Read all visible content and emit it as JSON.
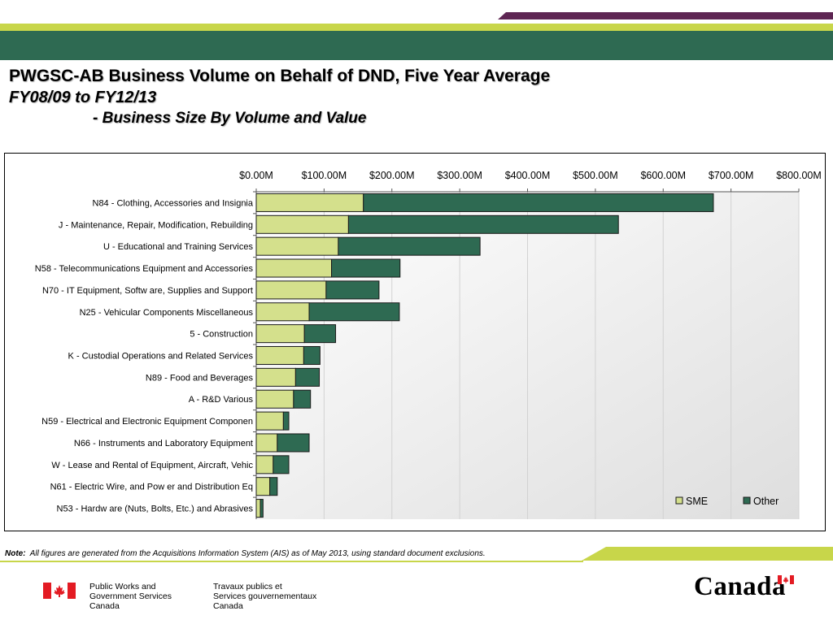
{
  "title": {
    "line1": "PWGSC-AB Business Volume on Behalf of DND, Five Year Average",
    "line2": "FY08/09 to FY12/13",
    "line3": "- Business Size By Volume and Value"
  },
  "chart_data": {
    "type": "bar",
    "orientation": "horizontal",
    "stacked": true,
    "title": "",
    "xlabel": "",
    "ylabel": "",
    "xlim": [
      0,
      800
    ],
    "x_unit": "M",
    "x_ticks": [
      "$0.00M",
      "$100.00M",
      "$200.00M",
      "$300.00M",
      "$400.00M",
      "$500.00M",
      "$600.00M",
      "$700.00M",
      "$800.00M"
    ],
    "x_axis_position": "top",
    "grid": true,
    "legend_position": "bottom-right",
    "categories": [
      "N84 - Clothing, Accessories and Insignia",
      "J - Maintenance, Repair, Modification, Rebuilding",
      "U - Educational and Training Services",
      "N58 - Telecommunications Equipment and Accessories",
      "N70 - IT Equipment, Softw are, Supplies and Support",
      "N25 - Vehicular Components Miscellaneous",
      "5 - Construction",
      "K - Custodial Operations and Related Services",
      "N89 - Food and Beverages",
      "A - R&D Various",
      "N59 - Electrical and Electronic Equipment Componen",
      "N66 - Instruments and Laboratory Equipment",
      "W - Lease and Rental of Equipment, Aircraft, Vehic",
      "N61 - Electric Wire, and Pow er and Distribution Eq",
      "N53 - Hardw are (Nuts, Bolts, Etc.) and Abrasives"
    ],
    "series": [
      {
        "name": "SME",
        "color": "#d4e08c",
        "values": [
          158,
          136,
          121,
          111,
          103,
          78,
          71,
          70,
          58,
          55,
          40,
          31,
          25,
          20,
          6
        ]
      },
      {
        "name": "Other",
        "color": "#2e6a52",
        "values": [
          516,
          398,
          209,
          101,
          78,
          133,
          46,
          24,
          35,
          25,
          8,
          47,
          23,
          11,
          4
        ]
      }
    ]
  },
  "note": {
    "label": "Note:",
    "text": "All figures are generated from the Acquisitions Information System (AIS) as of May 2013, using standard document exclusions."
  },
  "footer": {
    "dept_en": [
      "Public Works and",
      "Government Services",
      "Canada"
    ],
    "dept_fr": [
      "Travaux publics et",
      "Services gouvernementaux",
      "Canada"
    ],
    "wordmark": "Canada"
  },
  "colors": {
    "accent_green": "#2e6a52",
    "lime": "#c8d64a",
    "purple": "#5e2653"
  }
}
